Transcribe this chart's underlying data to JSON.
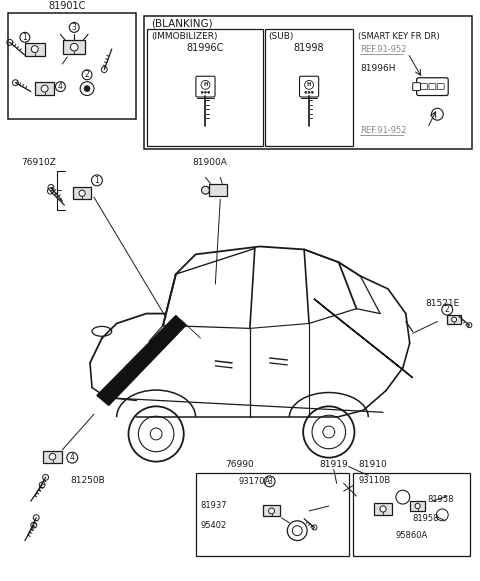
{
  "bg": "#ffffff",
  "fg": "#1a1a1a",
  "gray": "#888888",
  "lw": 0.9,
  "top_left_part": "81901C",
  "blanking_label": "(BLANKING)",
  "immo_label": "(IMMOBILIZER)",
  "immo_part": "81996C",
  "sub_label": "(SUB)",
  "sub_part": "81998",
  "smart_label": "(SMART KEY FR DR)",
  "smart_ref_top": "REF.91-952",
  "smart_part": "81996H",
  "smart_ref_bot": "REF.91-952",
  "label_76910Z": "76910Z",
  "label_81900A": "81900A",
  "label_81521E": "81521E",
  "label_81919": "81919",
  "label_81910": "81910",
  "label_93110B": "93110B",
  "label_81958a": "81958",
  "label_81958b": "81958",
  "label_95860A": "95860A",
  "label_81250B": "81250B",
  "label_76990": "76990",
  "label_93170A": "93170A",
  "label_81937": "81937",
  "label_95402": "95402"
}
